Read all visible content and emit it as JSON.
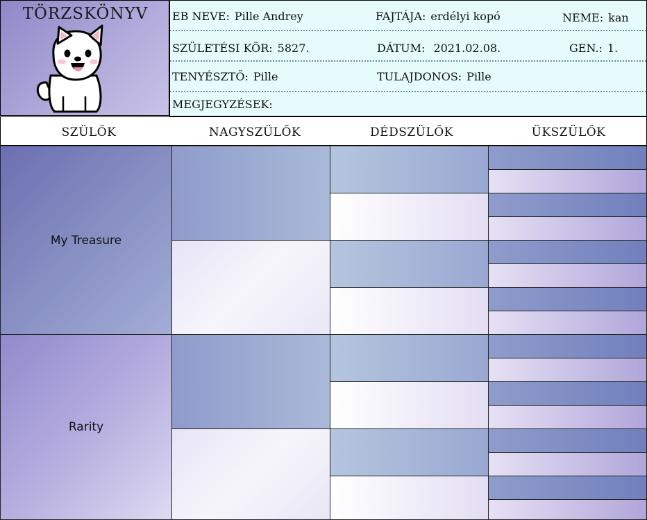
{
  "logo": {
    "title": "TÖRZSKÖNYV",
    "image": "white-puppy-icon"
  },
  "info": {
    "dog_name_label": "EB NEVE:",
    "dog_name": "Pille Andrey",
    "breed_label": "FAJTÁJA:",
    "breed": "erdélyi kopó",
    "sex_label": "NEME:",
    "sex": "kan",
    "birth_id_label": "SZÜLETÉSI KÖR:",
    "birth_id": "5827.",
    "date_label": "DÁTUM:",
    "date": "2021.02.08.",
    "gen_label": "GEN.:",
    "gen": "1.",
    "breeder_label": "TENYÉSZTŐ:",
    "breeder": "Pille",
    "owner_label": "TULAJDONOS:",
    "owner": "Pille",
    "notes_label": "MEGJEGYZÉSEK:",
    "notes": ""
  },
  "columns": [
    "SZÜLŐK",
    "NAGYSZÜLŐK",
    "DÉDSZÜLŐK",
    "ÜKSZÜLŐK"
  ],
  "pedigree": {
    "parents": [
      "My Treasure",
      "Rarity"
    ],
    "grandparents": [
      "",
      "",
      "",
      ""
    ],
    "great_grandparents": [
      "",
      "",
      "",
      "",
      "",
      "",
      "",
      ""
    ],
    "great_great_grandparents": [
      "",
      "",
      "",
      "",
      "",
      "",
      "",
      "",
      "",
      "",
      "",
      "",
      "",
      "",
      "",
      ""
    ]
  },
  "colors": {
    "info_background": "#e6fbfc",
    "parent_1": "#6c6fb2",
    "parent_2": "#9189cc",
    "accent_light": "#e7e4f5"
  }
}
